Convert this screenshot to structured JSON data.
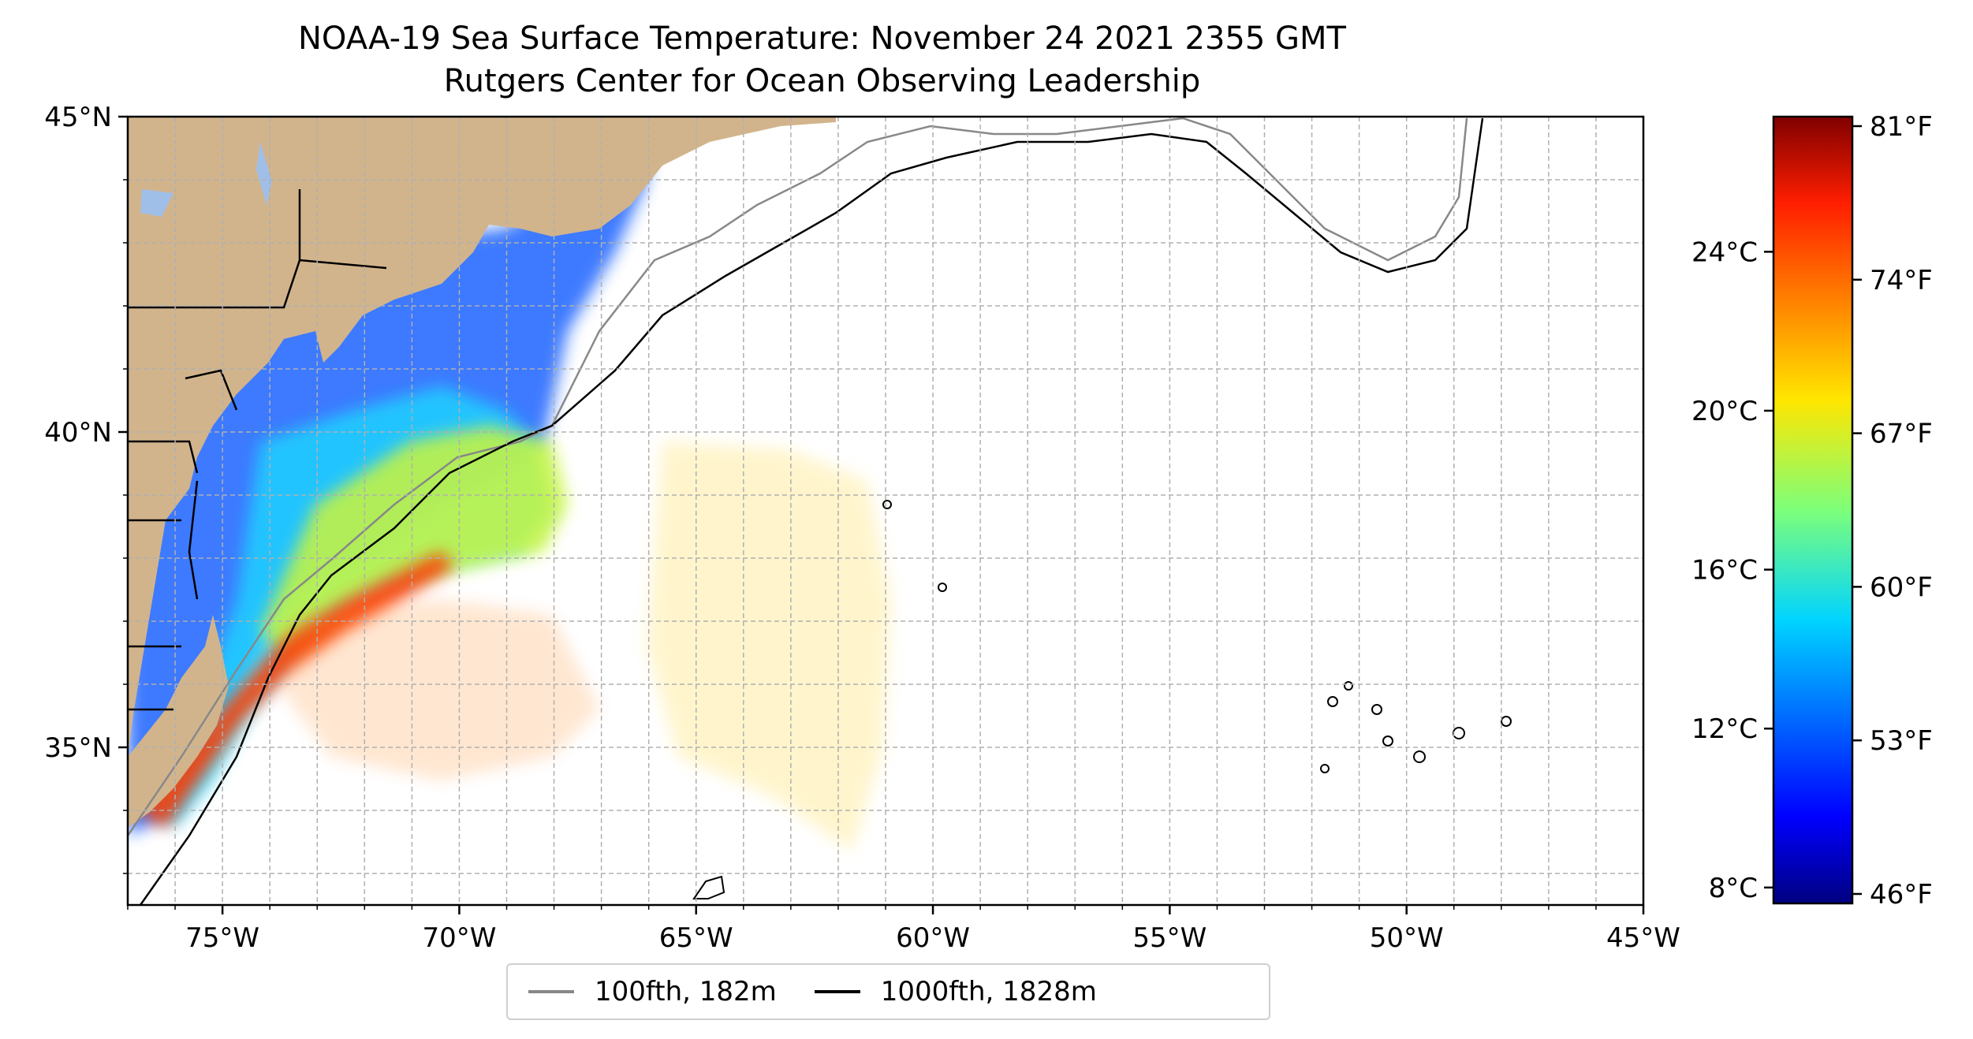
{
  "title": {
    "line1": "NOAA-19 Sea Surface Temperature: November 24 2021 2355 GMT",
    "line2": "Rutgers Center for Ocean Observing Leadership"
  },
  "map": {
    "lon_range": [
      -77,
      -45
    ],
    "lat_range": [
      32.5,
      45
    ],
    "x_ticks": [
      {
        "lon": -75,
        "label": "75°W"
      },
      {
        "lon": -70,
        "label": "70°W"
      },
      {
        "lon": -65,
        "label": "65°W"
      },
      {
        "lon": -60,
        "label": "60°W"
      },
      {
        "lon": -55,
        "label": "55°W"
      },
      {
        "lon": -50,
        "label": "50°W"
      },
      {
        "lon": -45,
        "label": "45°W"
      }
    ],
    "y_ticks": [
      {
        "lat": 45,
        "label": "45°N"
      },
      {
        "lat": 40,
        "label": "40°N"
      },
      {
        "lat": 35,
        "label": "35°N"
      }
    ],
    "grid": true,
    "land_color": "#d2b48c",
    "water_color": "#9fbfe8"
  },
  "legend": {
    "items": [
      {
        "label": "100fth, 182m",
        "color": "#888888"
      },
      {
        "label": "1000fth, 1828m",
        "color": "#000000"
      }
    ],
    "placement": "bottom"
  },
  "colorbar": {
    "colormap": "jet",
    "celsius_ticks": [
      {
        "value": 24,
        "label": "24°C"
      },
      {
        "value": 20,
        "label": "20°C"
      },
      {
        "value": 16,
        "label": "16°C"
      },
      {
        "value": 12,
        "label": "12°C"
      },
      {
        "value": 8,
        "label": "8°C"
      }
    ],
    "fahrenheit_ticks": [
      {
        "label": "81°F"
      },
      {
        "label": "74°F"
      },
      {
        "label": "67°F"
      },
      {
        "label": "60°F"
      },
      {
        "label": "53°F"
      },
      {
        "label": "46°F"
      }
    ],
    "range_celsius": [
      7.6,
      27.4
    ]
  }
}
